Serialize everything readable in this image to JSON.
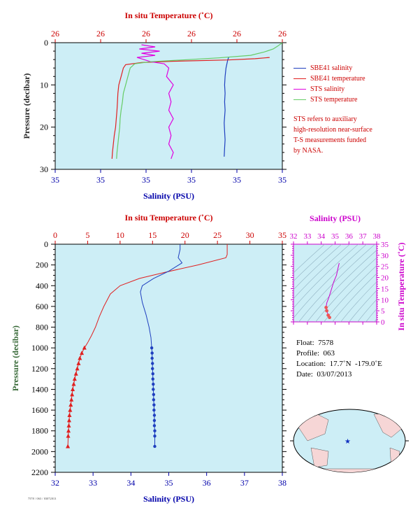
{
  "colors": {
    "plot_bg": "#cdeef6",
    "temperature_axis": "#cc0000",
    "salinity_axis": "#0000aa",
    "pressure_axis": "#336633",
    "sbe_salinity": "#1f3fbf",
    "sbe_temperature": "#e02020",
    "sts_salinity": "#e000e0",
    "sts_temperature": "#66cc66",
    "ts_axis": "#cc00cc"
  },
  "chart_data": [
    {
      "type": "line",
      "name": "near-surface profile",
      "top_axis_label": "In situ Temperature (˚C)",
      "top_ticks": [
        "26",
        "26",
        "26",
        "26",
        "26",
        "26"
      ],
      "bottom_axis_label": "Salinity (PSU)",
      "bottom_ticks": [
        "35",
        "35",
        "35",
        "35",
        "35",
        "35"
      ],
      "ylabel": "Pressure (decibar)",
      "yticks": [
        0,
        10,
        20,
        30
      ],
      "ylim": [
        0,
        30
      ],
      "xlim": [
        0,
        5
      ],
      "series": [
        {
          "name": "SBE41 salinity",
          "x": [
            3.82,
            3.8,
            3.76,
            3.74,
            3.73,
            3.74,
            3.73,
            3.74,
            3.72,
            3.73,
            3.74,
            3.73,
            3.72
          ],
          "y": [
            3.5,
            4,
            6,
            8,
            10,
            12,
            14,
            16,
            19,
            21,
            23,
            25,
            27
          ]
        },
        {
          "name": "SBE41 temperature",
          "x": [
            4.72,
            4.4,
            3.8,
            2.6,
            1.9,
            1.55,
            1.5,
            1.45,
            1.4,
            1.38,
            1.37,
            1.36,
            1.33,
            1.3,
            1.28,
            1.26,
            1.25
          ],
          "y": [
            3.5,
            3.8,
            4.1,
            4.4,
            4.7,
            5.2,
            6,
            8,
            10,
            12,
            14,
            16,
            20,
            22,
            24,
            26,
            27.5
          ]
        },
        {
          "name": "STS salinity",
          "x": [
            1.9,
            2.2,
            1.85,
            2.3,
            1.9,
            2.2,
            1.8,
            1.95,
            2.1,
            2.4,
            2.5,
            2.45,
            2.6,
            2.5,
            2.55,
            2.5,
            2.6,
            2.5,
            2.55,
            2.5,
            2.6,
            2.55
          ],
          "y": [
            0.5,
            1,
            1.5,
            2,
            2.5,
            3,
            3.5,
            4,
            4.5,
            5,
            6,
            8,
            10,
            12,
            14,
            16,
            18,
            20,
            22,
            24,
            26,
            27.5
          ]
        },
        {
          "name": "STS temperature",
          "x": [
            5.0,
            4.9,
            4.8,
            4.6,
            4.3,
            3.6,
            2.8,
            2.1,
            1.75,
            1.65,
            1.6,
            1.55,
            1.5,
            1.48,
            1.45,
            1.43,
            1.42,
            1.4,
            1.38,
            1.36,
            1.35
          ],
          "y": [
            0,
            0.8,
            1.5,
            2.2,
            3,
            3.6,
            4.1,
            4.5,
            5,
            6,
            8,
            10,
            12,
            14,
            16,
            18,
            20,
            22,
            24,
            26,
            27.5
          ]
        }
      ]
    },
    {
      "type": "line",
      "name": "full-depth profile",
      "top_axis_label": "In situ Temperature (˚C)",
      "top_ticks": [
        0,
        5,
        10,
        15,
        20,
        25,
        30,
        35
      ],
      "xlim_temperature": [
        0,
        35
      ],
      "bottom_axis_label": "Salinity (PSU)",
      "bottom_ticks": [
        32,
        33,
        34,
        35,
        36,
        37,
        38
      ],
      "xlim_salinity": [
        32,
        38
      ],
      "ylabel": "Pressure (decibar)",
      "yticks": [
        0,
        200,
        400,
        600,
        800,
        1000,
        1200,
        1400,
        1600,
        1800,
        2000,
        2200
      ],
      "ylim": [
        0,
        2200
      ],
      "series": [
        {
          "name": "temperature",
          "x": [
            26.5,
            26.5,
            26.3,
            22,
            17,
            13,
            10,
            8.5,
            7.5,
            6.8,
            6.2,
            5.6,
            5.0,
            4.5
          ],
          "y": [
            0,
            100,
            130,
            200,
            270,
            330,
            400,
            480,
            600,
            700,
            800,
            880,
            950,
            1000
          ]
        },
        {
          "name": "salinity",
          "x": [
            35.3,
            35.3,
            35.25,
            35.35,
            35.0,
            34.6,
            34.3,
            34.25,
            34.3,
            34.4,
            34.48,
            34.53,
            34.55
          ],
          "y": [
            0,
            50,
            130,
            180,
            260,
            330,
            400,
            460,
            560,
            680,
            800,
            900,
            1000
          ]
        },
        {
          "name": "temperature (markers)",
          "x": [
            4.5,
            4.1,
            3.8,
            3.6,
            3.4,
            3.2,
            3.0,
            2.85,
            2.7,
            2.6,
            2.5,
            2.4,
            2.3,
            2.2,
            2.15,
            2.1,
            2.05,
            2.0,
            1.95
          ],
          "y": [
            1000,
            1050,
            1100,
            1150,
            1200,
            1250,
            1300,
            1350,
            1400,
            1450,
            1500,
            1550,
            1600,
            1650,
            1700,
            1750,
            1800,
            1850,
            1950
          ]
        },
        {
          "name": "salinity (markers)",
          "x": [
            34.55,
            34.56,
            34.56,
            34.57,
            34.57,
            34.58,
            34.58,
            34.59,
            34.59,
            34.6,
            34.6,
            34.61,
            34.61,
            34.62,
            34.62,
            34.62,
            34.63,
            34.63,
            34.63
          ],
          "y": [
            1000,
            1050,
            1100,
            1150,
            1200,
            1250,
            1300,
            1350,
            1400,
            1450,
            1500,
            1550,
            1600,
            1650,
            1700,
            1750,
            1800,
            1850,
            1950
          ]
        }
      ]
    },
    {
      "type": "scatter",
      "name": "T-S diagram",
      "top_axis_label": "Salinity (PSU)",
      "top_ticks": [
        32,
        33,
        34,
        35,
        36,
        37,
        38
      ],
      "xlim": [
        32,
        38
      ],
      "right_axis_label": "In situ Temperature (˚C)",
      "right_ticks": [
        0,
        5,
        10,
        15,
        20,
        25,
        30,
        35
      ],
      "ylim": [
        0,
        35
      ],
      "series": [
        {
          "name": "profile",
          "x": [
            35.3,
            35.2,
            35.1,
            34.9,
            34.7,
            34.55,
            34.4,
            34.35,
            34.4,
            34.5,
            34.6
          ],
          "y": [
            26.5,
            24,
            21,
            18,
            14,
            11,
            8.5,
            6.5,
            5,
            3,
            2
          ]
        }
      ]
    }
  ],
  "legend": {
    "items": [
      {
        "label": "SBE41 salinity",
        "color": "#1f3fbf"
      },
      {
        "label": "SBE41 temperature",
        "color": "#e02020"
      },
      {
        "label": "STS salinity",
        "color": "#e000e0"
      },
      {
        "label": "STS temperature",
        "color": "#66cc66"
      }
    ],
    "note_lines": [
      "STS refers to auxiliary",
      "high-resolution near-surface",
      "T-S measurements funded",
      "by NASA."
    ]
  },
  "info": {
    "float": "Float:  7578",
    "profile": "Profile:  063",
    "location": "Location:  17.7˚N  -179.0˚E",
    "date": "Date:  03/07/2013"
  },
  "footer_code": "7578 / 063 / 03072013"
}
